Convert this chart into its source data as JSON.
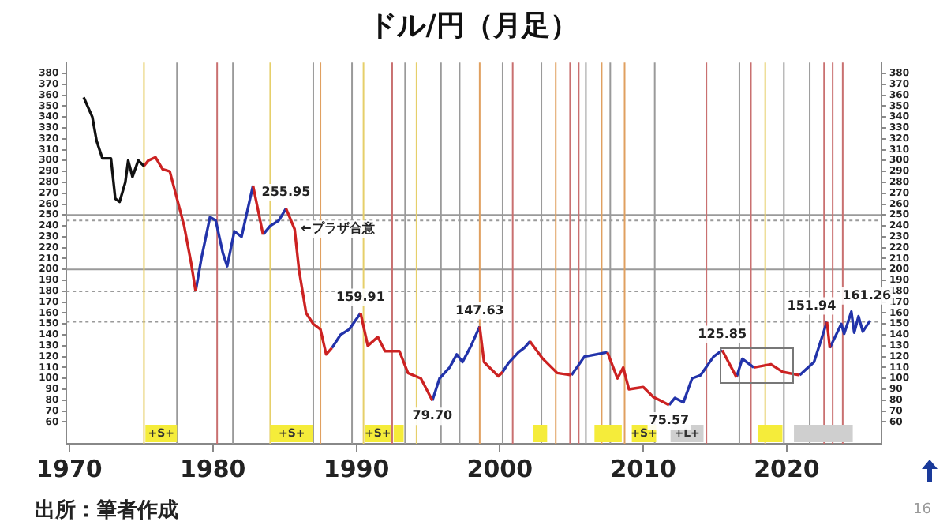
{
  "chart_data": {
    "type": "line",
    "title": "ドル/円（月足）",
    "xlim": [
      1969.8,
      2026.6
    ],
    "xticks": [
      1970,
      1980,
      1990,
      2000,
      2010,
      2020
    ],
    "ylim": [
      40,
      390
    ],
    "yticks": [
      60,
      70,
      80,
      90,
      100,
      110,
      120,
      130,
      140,
      150,
      160,
      170,
      180,
      190,
      200,
      210,
      220,
      230,
      240,
      250,
      260,
      270,
      280,
      290,
      300,
      310,
      320,
      330,
      340,
      350,
      360,
      370,
      380
    ],
    "y2lim": [
      40,
      390
    ],
    "y2ticks": [
      60,
      70,
      80,
      90,
      100,
      110,
      120,
      130,
      140,
      150,
      160,
      170,
      180,
      190,
      200,
      210,
      220,
      230,
      240,
      250,
      260,
      270,
      280,
      290,
      300,
      310,
      320,
      330,
      340,
      350,
      360,
      370,
      380
    ],
    "marker": "none",
    "legend": false,
    "series": [
      {
        "color": "#111111",
        "x": [
          1971.0,
          1971.6,
          1971.9,
          1972.3,
          1972.9,
          1973.2,
          1973.5,
          1973.9,
          1974.1,
          1974.4,
          1974.8,
          1975.2
        ],
        "values": [
          358,
          340,
          318,
          302,
          302,
          265,
          262,
          280,
          300,
          285,
          300,
          295
        ]
      },
      {
        "color": "#cc2222",
        "x": [
          1975.2,
          1975.5,
          1976.0,
          1976.5,
          1977.0,
          1977.5,
          1978.0,
          1978.5,
          1978.8,
          1979.5,
          1982.8,
          1983.5,
          1984.0,
          1985.1,
          1985.7,
          1986.0,
          1986.5,
          1987.0,
          1987.5,
          1987.9,
          1988.3,
          1989.0,
          1990.3,
          1990.8,
          1991.5,
          1992.0,
          1993.0,
          1993.6,
          1994.5,
          1995.3,
          1997.0,
          1998.6,
          1998.9,
          1999.9,
          2000.2,
          2001.0,
          2002.1,
          2003.0,
          2004.0,
          2005.0,
          2006.0,
          2007.5,
          2008.2,
          2008.6,
          2009.0,
          2010.0,
          2010.7,
          2011.8,
          2013.0,
          2015.5,
          2016.5,
          2017.0,
          2017.7,
          2018.9,
          2019.7,
          2020.9,
          2022.0,
          2022.8,
          2023.0
        ],
        "values": [
          295,
          300,
          303,
          292,
          290,
          265,
          240,
          205,
          180,
          null,
          277,
          232,
          null,
          255.95,
          237,
          200,
          160,
          150,
          145,
          122,
          128,
          null,
          159.91,
          130,
          138,
          125,
          125,
          105,
          100,
          79.7,
          null,
          147.63,
          115,
          102,
          106,
          null,
          134,
          118,
          105,
          103,
          null,
          124,
          100,
          110,
          90,
          92,
          83,
          75.57,
          null,
          125.85,
          101,
          null,
          110,
          113,
          106,
          103,
          null,
          151.94,
          128
        ]
      },
      {
        "color": "#2233aa",
        "x": [
          1978.8,
          1979.2,
          1979.8,
          1980.2,
          1980.7,
          1981.0,
          1981.5,
          1982.0,
          1982.8,
          1983.0,
          1983.5,
          1984.0,
          1984.6,
          1985.1,
          1985.5,
          1988.3,
          1988.9,
          1989.5,
          1990.3,
          1992.0,
          1995.3,
          1995.8,
          1996.5,
          1997.0,
          1997.4,
          1998.0,
          1998.6,
          1999.0,
          2000.2,
          2000.6,
          2001.3,
          2001.7,
          2002.1,
          2003.0,
          2005.0,
          2005.9,
          2007.5,
          2009.0,
          2011.8,
          2012.2,
          2012.8,
          2013.4,
          2014.0,
          2014.9,
          2015.5,
          2016.0,
          2016.5,
          2016.9,
          2017.7,
          2019.0,
          2020.9,
          2021.9,
          2022.8,
          2022.9,
          2023.0,
          2023.8,
          2024.0,
          2024.5,
          2024.7,
          2025.0,
          2025.3,
          2025.8
        ],
        "values": [
          180,
          210,
          248,
          245,
          215,
          203,
          235,
          230,
          277,
          null,
          232,
          240,
          245,
          255.95,
          null,
          128,
          140,
          145,
          159.91,
          null,
          79.7,
          100,
          110,
          122,
          115,
          130,
          147.63,
          null,
          106,
          114,
          124,
          128,
          134,
          null,
          103,
          120,
          124,
          null,
          75.57,
          82,
          78,
          100,
          103,
          120,
          125.85,
          null,
          101,
          118,
          110,
          null,
          103,
          115,
          151.94,
          null,
          128,
          150,
          141,
          161.26,
          142,
          157,
          143,
          153
        ]
      }
    ],
    "ref_lines": [
      {
        "axis": "y",
        "value": 250,
        "color": "#9a9a9a",
        "line_style": "solid"
      },
      {
        "axis": "y",
        "value": 245,
        "color": "#9a9a9a",
        "line_style": "dotted"
      },
      {
        "axis": "y",
        "value": 200,
        "color": "#9a9a9a",
        "line_style": "solid"
      },
      {
        "axis": "y",
        "value": 180,
        "color": "#9a9a9a",
        "line_style": "dotted"
      },
      {
        "axis": "y",
        "value": 152,
        "color": "#9a9a9a",
        "line_style": "dotted"
      },
      {
        "axis": "x",
        "value": 1975.2,
        "color": "#e6cf6a"
      },
      {
        "axis": "x",
        "value": 1977.5,
        "color": "#9a9a9a"
      },
      {
        "axis": "x",
        "value": 1980.3,
        "color": "#c97070"
      },
      {
        "axis": "x",
        "value": 1981.4,
        "color": "#9a9a9a"
      },
      {
        "axis": "x",
        "value": 1984.0,
        "color": "#e6cf6a"
      },
      {
        "axis": "x",
        "value": 1987.0,
        "color": "#9a9a9a"
      },
      {
        "axis": "x",
        "value": 1987.5,
        "color": "#e0a060"
      },
      {
        "axis": "x",
        "value": 1989.7,
        "color": "#9a9a9a"
      },
      {
        "axis": "x",
        "value": 1990.5,
        "color": "#e6cf6a"
      },
      {
        "axis": "x",
        "value": 1992.5,
        "color": "#c97070"
      },
      {
        "axis": "x",
        "value": 1993.4,
        "color": "#9a9a9a"
      },
      {
        "axis": "x",
        "value": 1994.2,
        "color": "#e6cf6a"
      },
      {
        "axis": "x",
        "value": 1995.9,
        "color": "#9a9a9a"
      },
      {
        "axis": "x",
        "value": 1997.2,
        "color": "#9a9a9a"
      },
      {
        "axis": "x",
        "value": 1998.6,
        "color": "#e0a060"
      },
      {
        "axis": "x",
        "value": 2000.2,
        "color": "#9a9a9a"
      },
      {
        "axis": "x",
        "value": 2000.9,
        "color": "#c97070"
      },
      {
        "axis": "x",
        "value": 2002.9,
        "color": "#9a9a9a"
      },
      {
        "axis": "x",
        "value": 2003.9,
        "color": "#e0a060"
      },
      {
        "axis": "x",
        "value": 2004.9,
        "color": "#c97070"
      },
      {
        "axis": "x",
        "value": 2005.5,
        "color": "#c97070"
      },
      {
        "axis": "x",
        "value": 2006.0,
        "color": "#9a9a9a"
      },
      {
        "axis": "x",
        "value": 2007.1,
        "color": "#e0a060"
      },
      {
        "axis": "x",
        "value": 2007.7,
        "color": "#9a9a9a"
      },
      {
        "axis": "x",
        "value": 2008.7,
        "color": "#e0a060"
      },
      {
        "axis": "x",
        "value": 2010.8,
        "color": "#9a9a9a"
      },
      {
        "axis": "x",
        "value": 2014.4,
        "color": "#c97070"
      },
      {
        "axis": "x",
        "value": 2016.7,
        "color": "#9a9a9a"
      },
      {
        "axis": "x",
        "value": 2017.5,
        "color": "#c97070"
      },
      {
        "axis": "x",
        "value": 2018.5,
        "color": "#e6cf6a"
      },
      {
        "axis": "x",
        "value": 2019.8,
        "color": "#9a9a9a"
      },
      {
        "axis": "x",
        "value": 2021.6,
        "color": "#9a9a9a"
      },
      {
        "axis": "x",
        "value": 2022.6,
        "color": "#c97070"
      },
      {
        "axis": "x",
        "value": 2023.2,
        "color": "#c97070"
      },
      {
        "axis": "x",
        "value": 2023.9,
        "color": "#c97070"
      }
    ],
    "bands": [
      {
        "axis": "x",
        "from": 1975.3,
        "to": 1977.5,
        "label": "+S+",
        "color": "#f5ec3a"
      },
      {
        "axis": "x",
        "from": 1984.0,
        "to": 1987.0,
        "label": "+S+",
        "color": "#f5ec3a"
      },
      {
        "axis": "x",
        "from": 1990.6,
        "to": 1992.4,
        "label": "+S+",
        "color": "#f5ec3a"
      },
      {
        "axis": "x",
        "from": 1992.6,
        "to": 1993.3,
        "color": "#f5ec3a"
      },
      {
        "axis": "x",
        "from": 2002.3,
        "to": 2003.3,
        "color": "#f5ec3a"
      },
      {
        "axis": "x",
        "from": 2006.6,
        "to": 2008.5,
        "color": "#f5ec3a"
      },
      {
        "axis": "x",
        "from": 2009.2,
        "to": 2010.9,
        "label": "+S+",
        "color": "#f5ec3a"
      },
      {
        "axis": "x",
        "from": 2011.9,
        "to": 2014.2,
        "label": "+L+",
        "color": "#cfcfcf"
      },
      {
        "axis": "x",
        "from": 2018.0,
        "to": 2019.7,
        "color": "#f5ec3a"
      },
      {
        "axis": "x",
        "from": 2020.5,
        "to": 2024.6,
        "color": "#cfcfcf"
      }
    ],
    "annotations": [
      "出所：筆者作成",
      "16",
      {
        "text": "255.95",
        "x": 1985.1,
        "y": 255.95
      },
      {
        "text": "←プラザ合意",
        "x": 1985.7,
        "y": 237
      },
      {
        "text": "159.91",
        "x": 1990.3,
        "y": 159.91
      },
      {
        "text": "147.63",
        "x": 1998.6,
        "y": 147.63
      },
      {
        "text": "79.70",
        "x": 1995.3,
        "y": 79.7
      },
      {
        "text": "75.57",
        "x": 2011.8,
        "y": 75.57
      },
      {
        "text": "125.85",
        "x": 2015.5,
        "y": 125.85
      },
      {
        "text": "151.94",
        "x": 2022.8,
        "y": 151.94
      },
      {
        "text": "161.26",
        "x": 2024.5,
        "y": 161.26
      }
    ]
  }
}
